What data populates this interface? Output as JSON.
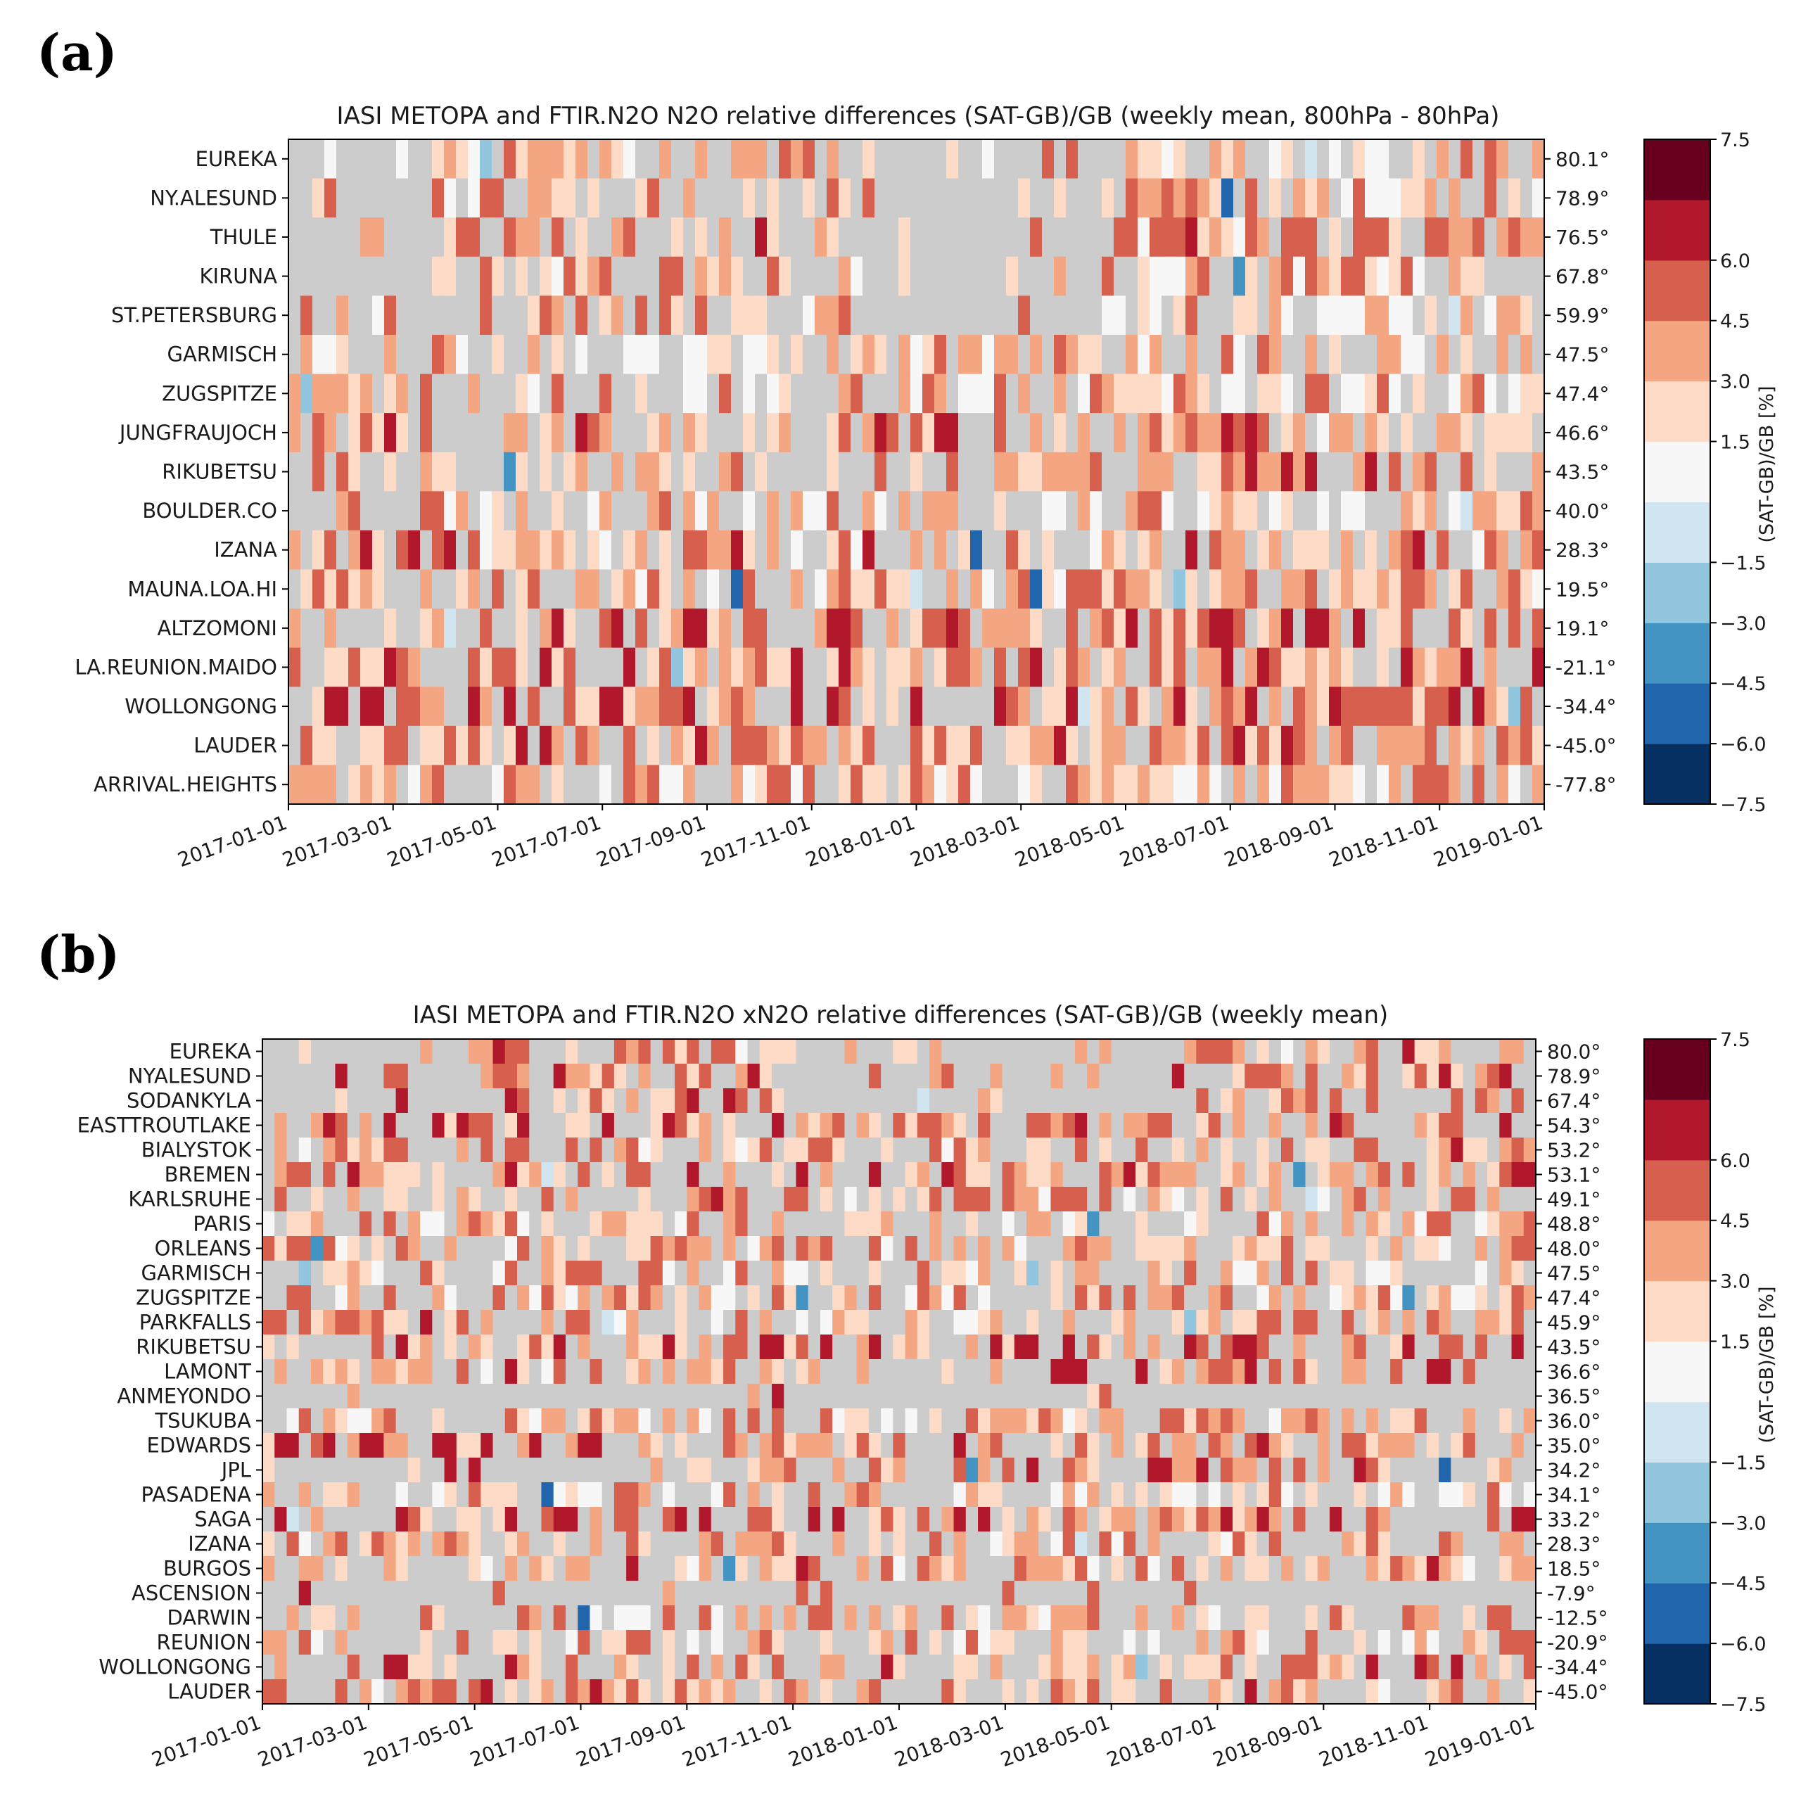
{
  "figure_labels": [
    "(a)",
    "(b)"
  ],
  "colorbar_colors": [
    "#053061",
    "#2166ac",
    "#4393c3",
    "#92c5de",
    "#d1e5f0",
    "#f7f7f7",
    "#fddbc7",
    "#f4a582",
    "#d6604d",
    "#b2182b",
    "#67001f"
  ],
  "missing_color": "#cccccc",
  "chart_data": [
    {
      "type": "heatmap",
      "panel_label": "(a)",
      "title": "IASI METOPA and FTIR.N2O N2O relative differences (SAT-GB)/GB (weekly mean, 800hPa - 80hPa)",
      "colorbar_label": "(SAT-GB)/GB [%]",
      "colorbar_ticks": [
        "−7.5",
        "−6.0",
        "−4.5",
        "−3.0",
        "−1.5",
        "1.5",
        "3.0",
        "4.5",
        "6.0",
        "7.5"
      ],
      "colorbar_bounds": [
        -7.5,
        7.5
      ],
      "stations": [
        "EUREKA",
        "NY.ALESUND",
        "THULE",
        "KIRUNA",
        "ST.PETERSBURG",
        "GARMISCH",
        "ZUGSPITZE",
        "JUNGFRAUJOCH",
        "RIKUBETSU",
        "BOULDER.CO",
        "IZANA",
        "MAUNA.LOA.HI",
        "ALTZOMONI",
        "LA.REUNION.MAIDO",
        "WOLLONGONG",
        "LAUDER",
        "ARRIVAL.HEIGHTS"
      ],
      "latitudes": [
        "80.1°",
        "78.9°",
        "76.5°",
        "67.8°",
        "59.9°",
        "47.5°",
        "47.4°",
        "46.6°",
        "43.5°",
        "40.0°",
        "28.3°",
        "19.5°",
        "19.1°",
        "-21.1°",
        "-34.4°",
        "-45.0°",
        "-77.8°"
      ],
      "date_ticks": [
        "2017-01-01",
        "2017-03-01",
        "2017-05-01",
        "2017-07-01",
        "2017-09-01",
        "2017-11-01",
        "2018-01-01",
        "2018-03-01",
        "2018-05-01",
        "2018-07-01",
        "2018-09-01",
        "2018-11-01",
        "2019-01-01"
      ],
      "x_range": [
        "2017-01-01",
        "2019-01-01"
      ],
      "weeks": 105,
      "cell_value_units": "%",
      "values_note": "Weekly mean relative differences; grey cells = no coincident data. Cell values estimated from colour classes."
    },
    {
      "type": "heatmap",
      "panel_label": "(b)",
      "title": "IASI METOPA and FTIR.N2O xN2O relative differences (SAT-GB)/GB (weekly mean)",
      "colorbar_label": "(SAT-GB)/GB [%]",
      "colorbar_ticks": [
        "−7.5",
        "−6.0",
        "−4.5",
        "−3.0",
        "−1.5",
        "1.5",
        "3.0",
        "4.5",
        "6.0",
        "7.5"
      ],
      "colorbar_bounds": [
        -7.5,
        7.5
      ],
      "stations": [
        "EUREKA",
        "NYALESUND",
        "SODANKYLA",
        "EASTTROUTLAKE",
        "BIALYSTOK",
        "BREMEN",
        "KARLSRUHE",
        "PARIS",
        "ORLEANS",
        "GARMISCH",
        "ZUGSPITZE",
        "PARKFALLS",
        "RIKUBETSU",
        "LAMONT",
        "ANMEYONDO",
        "TSUKUBA",
        "EDWARDS",
        "JPL",
        "PASADENA",
        "SAGA",
        "IZANA",
        "BURGOS",
        "ASCENSION",
        "DARWIN",
        "REUNION",
        "WOLLONGONG",
        "LAUDER"
      ],
      "latitudes": [
        "80.0°",
        "78.9°",
        "67.4°",
        "54.3°",
        "53.2°",
        "53.1°",
        "49.1°",
        "48.8°",
        "48.0°",
        "47.5°",
        "47.4°",
        "45.9°",
        "43.5°",
        "36.6°",
        "36.5°",
        "36.0°",
        "35.0°",
        "34.2°",
        "34.1°",
        "33.2°",
        "28.3°",
        "18.5°",
        "-7.9°",
        "-12.5°",
        "-20.9°",
        "-34.4°",
        "-45.0°"
      ],
      "date_ticks": [
        "2017-01-01",
        "2017-03-01",
        "2017-05-01",
        "2017-07-01",
        "2017-09-01",
        "2017-11-01",
        "2018-01-01",
        "2018-03-01",
        "2018-05-01",
        "2018-07-01",
        "2018-09-01",
        "2018-11-01",
        "2019-01-01"
      ],
      "x_range": [
        "2017-01-01",
        "2019-01-01"
      ],
      "weeks": 105,
      "cell_value_units": "%",
      "values_note": "Weekly mean relative differences; grey cells = no coincident data. Cell values estimated from colour classes."
    }
  ]
}
